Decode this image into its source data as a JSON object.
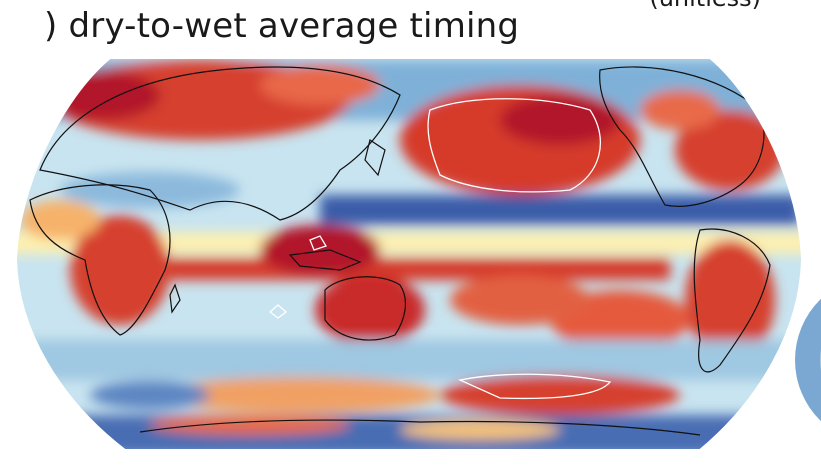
{
  "panel": {
    "letter": ")",
    "title": "dry-to-wet average timing",
    "units": "(unitless)"
  },
  "map": {
    "projection": "robinson",
    "center_longitude": 150,
    "colormap": "RdYlBu",
    "colors": {
      "deep_red": "#b2182b",
      "red": "#d6402f",
      "orange": "#f4a261",
      "yellow": "#fdf3b4",
      "light_blue": "#bfe0ee",
      "mid_blue": "#6fa6d2",
      "deep_blue": "#3b5ba8",
      "coastline": "#111111",
      "contour": "#ffffff"
    }
  }
}
